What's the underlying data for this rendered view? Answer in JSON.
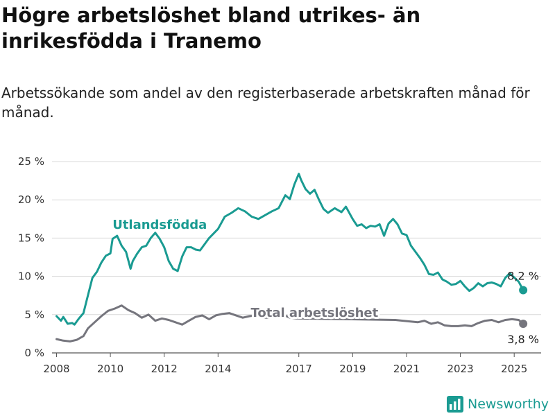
{
  "header": {
    "title": "Högre arbetslöshet bland utrikes- än inrikesfödda i Tranemo",
    "subtitle": "Arbetssökande som andel av den registerbaserade arbetskraften månad för månad."
  },
  "footer": {
    "brand": "Newsworthy",
    "brand_icon": "bar-chart-logo-icon",
    "brand_color": "#1a9b92"
  },
  "chart_data": {
    "type": "line",
    "grid": "horizontal",
    "legend": "inline-labels",
    "y_range": [
      0,
      25
    ],
    "x_range": [
      "2007-11",
      "2026-01"
    ],
    "y_ticks": [
      {
        "value": 0,
        "label": "0 %"
      },
      {
        "value": 5,
        "label": "5 %"
      },
      {
        "value": 10,
        "label": "10 %"
      },
      {
        "value": 15,
        "label": "15 %"
      },
      {
        "value": 20,
        "label": "20 %"
      },
      {
        "value": 25,
        "label": "25 %"
      }
    ],
    "x_ticks": [
      {
        "value": "2008-01",
        "label": "2008"
      },
      {
        "value": "2010-01",
        "label": "2010"
      },
      {
        "value": "2012-01",
        "label": "2012"
      },
      {
        "value": "2014-01",
        "label": "2014"
      },
      {
        "value": "2017-01",
        "label": "2017"
      },
      {
        "value": "2019-01",
        "label": "2019"
      },
      {
        "value": "2021-01",
        "label": "2021"
      },
      {
        "value": "2023-01",
        "label": "2023"
      },
      {
        "value": "2025-01",
        "label": "2025"
      }
    ],
    "series": [
      {
        "name": "Utlandsfödda",
        "color": "#1a9b92",
        "label_position": {
          "x": "2011-11",
          "y": 16.2
        },
        "end_label": "8,2 %",
        "points": [
          [
            "2008-01",
            4.8
          ],
          [
            "2008-03",
            4.2
          ],
          [
            "2008-04",
            4.7
          ],
          [
            "2008-06",
            3.8
          ],
          [
            "2008-08",
            3.9
          ],
          [
            "2008-09",
            3.7
          ],
          [
            "2008-11",
            4.5
          ],
          [
            "2009-01",
            5.2
          ],
          [
            "2009-03",
            7.5
          ],
          [
            "2009-05",
            9.8
          ],
          [
            "2009-07",
            10.6
          ],
          [
            "2009-09",
            11.8
          ],
          [
            "2009-11",
            12.7
          ],
          [
            "2010-01",
            13.0
          ],
          [
            "2010-02",
            14.9
          ],
          [
            "2010-04",
            15.3
          ],
          [
            "2010-06",
            14.0
          ],
          [
            "2010-08",
            13.2
          ],
          [
            "2010-10",
            11.0
          ],
          [
            "2010-11",
            12.0
          ],
          [
            "2011-01",
            13.0
          ],
          [
            "2011-03",
            13.8
          ],
          [
            "2011-05",
            14.0
          ],
          [
            "2011-07",
            15.0
          ],
          [
            "2011-09",
            15.7
          ],
          [
            "2011-11",
            14.9
          ],
          [
            "2012-01",
            13.8
          ],
          [
            "2012-03",
            12.0
          ],
          [
            "2012-05",
            11.0
          ],
          [
            "2012-07",
            10.7
          ],
          [
            "2012-09",
            12.6
          ],
          [
            "2012-11",
            13.8
          ],
          [
            "2013-01",
            13.8
          ],
          [
            "2013-03",
            13.5
          ],
          [
            "2013-05",
            13.4
          ],
          [
            "2013-07",
            14.2
          ],
          [
            "2013-09",
            15.0
          ],
          [
            "2014-01",
            16.2
          ],
          [
            "2014-04",
            17.8
          ],
          [
            "2014-07",
            18.3
          ],
          [
            "2014-10",
            18.9
          ],
          [
            "2015-01",
            18.5
          ],
          [
            "2015-04",
            17.8
          ],
          [
            "2015-07",
            17.5
          ],
          [
            "2015-10",
            18.0
          ],
          [
            "2016-01",
            18.5
          ],
          [
            "2016-04",
            18.9
          ],
          [
            "2016-07",
            20.6
          ],
          [
            "2016-09",
            20.1
          ],
          [
            "2016-11",
            22.0
          ],
          [
            "2017-01",
            23.4
          ],
          [
            "2017-02",
            22.6
          ],
          [
            "2017-04",
            21.4
          ],
          [
            "2017-06",
            20.8
          ],
          [
            "2017-08",
            21.3
          ],
          [
            "2017-10",
            20.0
          ],
          [
            "2017-12",
            18.8
          ],
          [
            "2018-02",
            18.3
          ],
          [
            "2018-05",
            18.9
          ],
          [
            "2018-08",
            18.4
          ],
          [
            "2018-10",
            19.1
          ],
          [
            "2019-01",
            17.5
          ],
          [
            "2019-03",
            16.6
          ],
          [
            "2019-05",
            16.8
          ],
          [
            "2019-07",
            16.3
          ],
          [
            "2019-09",
            16.6
          ],
          [
            "2019-11",
            16.5
          ],
          [
            "2020-01",
            16.8
          ],
          [
            "2020-03",
            15.3
          ],
          [
            "2020-05",
            16.9
          ],
          [
            "2020-07",
            17.5
          ],
          [
            "2020-09",
            16.8
          ],
          [
            "2020-11",
            15.6
          ],
          [
            "2021-01",
            15.4
          ],
          [
            "2021-03",
            14.0
          ],
          [
            "2021-05",
            13.2
          ],
          [
            "2021-07",
            12.4
          ],
          [
            "2021-09",
            11.5
          ],
          [
            "2021-11",
            10.3
          ],
          [
            "2022-01",
            10.2
          ],
          [
            "2022-03",
            10.5
          ],
          [
            "2022-05",
            9.6
          ],
          [
            "2022-07",
            9.3
          ],
          [
            "2022-09",
            8.9
          ],
          [
            "2022-11",
            9.0
          ],
          [
            "2023-01",
            9.4
          ],
          [
            "2023-03",
            8.7
          ],
          [
            "2023-05",
            8.1
          ],
          [
            "2023-07",
            8.5
          ],
          [
            "2023-09",
            9.1
          ],
          [
            "2023-11",
            8.7
          ],
          [
            "2024-01",
            9.1
          ],
          [
            "2024-03",
            9.2
          ],
          [
            "2024-05",
            9.0
          ],
          [
            "2024-07",
            8.7
          ],
          [
            "2024-09",
            9.8
          ],
          [
            "2024-11",
            10.4
          ],
          [
            "2025-03",
            9.3
          ],
          [
            "2025-05",
            8.2
          ]
        ]
      },
      {
        "name": "Total arbetslöshet",
        "color": "#75757d",
        "label_position": {
          "x": "2017-08",
          "y": 4.7
        },
        "end_label": "3,8 %",
        "points": [
          [
            "2008-01",
            1.8
          ],
          [
            "2008-04",
            1.6
          ],
          [
            "2008-07",
            1.5
          ],
          [
            "2008-10",
            1.7
          ],
          [
            "2009-01",
            2.2
          ],
          [
            "2009-03",
            3.2
          ],
          [
            "2009-06",
            4.0
          ],
          [
            "2009-09",
            4.8
          ],
          [
            "2009-12",
            5.5
          ],
          [
            "2010-03",
            5.8
          ],
          [
            "2010-06",
            6.2
          ],
          [
            "2010-09",
            5.6
          ],
          [
            "2010-12",
            5.2
          ],
          [
            "2011-03",
            4.6
          ],
          [
            "2011-06",
            5.0
          ],
          [
            "2011-09",
            4.2
          ],
          [
            "2011-12",
            4.5
          ],
          [
            "2012-03",
            4.3
          ],
          [
            "2012-06",
            4.0
          ],
          [
            "2012-09",
            3.7
          ],
          [
            "2012-12",
            4.2
          ],
          [
            "2013-03",
            4.7
          ],
          [
            "2013-06",
            4.9
          ],
          [
            "2013-09",
            4.4
          ],
          [
            "2013-12",
            4.9
          ],
          [
            "2014-03",
            5.1
          ],
          [
            "2014-06",
            5.2
          ],
          [
            "2014-09",
            4.9
          ],
          [
            "2014-12",
            4.6
          ],
          [
            "2015-03",
            4.8
          ],
          [
            "2015-06",
            4.9
          ],
          [
            "2015-09",
            4.6
          ],
          [
            "2015-12",
            4.6
          ],
          [
            "2016-03",
            4.9
          ],
          [
            "2016-06",
            5.0
          ],
          [
            "2016-09",
            4.6
          ],
          [
            "2016-12",
            4.5
          ],
          [
            "2020-08",
            4.3
          ],
          [
            "2021-06",
            4.0
          ],
          [
            "2021-09",
            4.2
          ],
          [
            "2021-12",
            3.8
          ],
          [
            "2022-03",
            4.0
          ],
          [
            "2022-06",
            3.6
          ],
          [
            "2022-09",
            3.5
          ],
          [
            "2022-12",
            3.5
          ],
          [
            "2023-03",
            3.6
          ],
          [
            "2023-06",
            3.5
          ],
          [
            "2023-09",
            3.9
          ],
          [
            "2023-12",
            4.2
          ],
          [
            "2024-03",
            4.3
          ],
          [
            "2024-06",
            4.0
          ],
          [
            "2024-09",
            4.3
          ],
          [
            "2024-12",
            4.4
          ],
          [
            "2025-03",
            4.3
          ],
          [
            "2025-05",
            3.8
          ]
        ]
      }
    ]
  }
}
